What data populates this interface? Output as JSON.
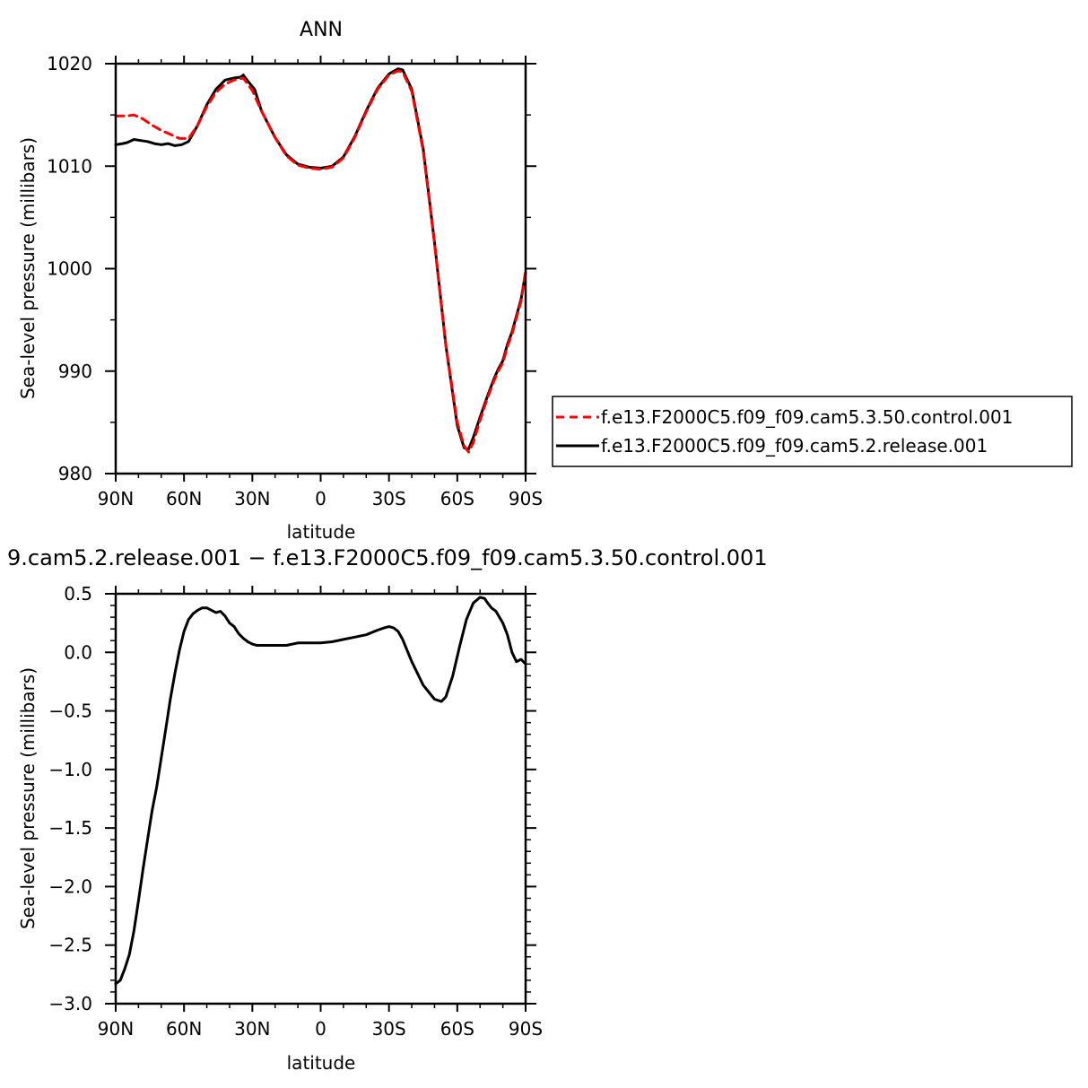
{
  "chart_data": [
    {
      "type": "line",
      "title": "ANN",
      "xlabel": "latitude",
      "ylabel": "Sea-level pressure (millibars)",
      "xlim": [
        -90,
        90
      ],
      "ylim": [
        980,
        1020
      ],
      "x_ticks": [
        -90,
        -60,
        -30,
        0,
        30,
        60,
        90
      ],
      "x_tick_labels": [
        "90N",
        "60N",
        "30N",
        "0",
        "30S",
        "60S",
        "90S"
      ],
      "y_ticks": [
        980,
        990,
        1000,
        1010,
        1020
      ],
      "y_tick_labels": [
        "980",
        "990",
        "1000",
        "1010",
        "1020"
      ],
      "legend": "right",
      "series": [
        {
          "name": "f.e13.F2000C5.f09_f09.cam5.3.50.control.001",
          "color": "#ff0000",
          "dash": "dashed",
          "x": [
            -90,
            -85,
            -82,
            -78,
            -74,
            -70,
            -66,
            -62,
            -58,
            -54,
            -50,
            -46,
            -42,
            -38,
            -34,
            -30,
            -26,
            -20,
            -15,
            -10,
            -5,
            0,
            5,
            10,
            15,
            20,
            25,
            30,
            34,
            36,
            40,
            45,
            50,
            55,
            60,
            63,
            65,
            67,
            70,
            73,
            76,
            78,
            80,
            82,
            84,
            86,
            88,
            90
          ],
          "y": [
            1014.9,
            1014.9,
            1015.0,
            1014.6,
            1014.0,
            1013.5,
            1013.1,
            1012.7,
            1012.7,
            1014.0,
            1015.8,
            1017.2,
            1018.0,
            1018.4,
            1018.6,
            1017.4,
            1015.4,
            1012.8,
            1011.0,
            1010.1,
            1009.8,
            1009.7,
            1009.9,
            1010.8,
            1012.8,
            1015.3,
            1017.5,
            1018.9,
            1019.3,
            1019.2,
            1017.3,
            1011.5,
            1002.5,
            992.5,
            985.0,
            982.7,
            982.1,
            983.0,
            985.2,
            987.2,
            989.0,
            990.0,
            990.8,
            992.4,
            993.6,
            995.2,
            996.8,
            999.8
          ]
        },
        {
          "name": "f.e13.F2000C5.f09_f09.cam5.2.release.001",
          "color": "#000000",
          "dash": "solid",
          "x": [
            -90,
            -87,
            -85,
            -82,
            -79,
            -76,
            -73,
            -70,
            -67,
            -64,
            -61,
            -58,
            -54,
            -50,
            -46,
            -42,
            -38,
            -35,
            -34,
            -32,
            -29,
            -26,
            -20,
            -15,
            -10,
            -5,
            0,
            5,
            10,
            15,
            20,
            25,
            30,
            34,
            36,
            40,
            45,
            50,
            55,
            60,
            63,
            65,
            67,
            70,
            73,
            76,
            78,
            80,
            82,
            84,
            86,
            88,
            90
          ],
          "y": [
            1012.1,
            1012.2,
            1012.3,
            1012.6,
            1012.5,
            1012.4,
            1012.2,
            1012.1,
            1012.2,
            1012.0,
            1012.1,
            1012.4,
            1014.0,
            1016.0,
            1017.5,
            1018.4,
            1018.6,
            1018.7,
            1018.9,
            1018.3,
            1017.5,
            1015.4,
            1012.8,
            1011.1,
            1010.2,
            1009.9,
            1009.8,
            1010.0,
            1010.9,
            1012.9,
            1015.4,
            1017.6,
            1019.0,
            1019.5,
            1019.4,
            1017.5,
            1011.7,
            1002.6,
            992.5,
            984.7,
            982.5,
            982.4,
            983.5,
            985.5,
            987.4,
            989.2,
            990.2,
            991.0,
            992.6,
            993.8,
            995.4,
            997.0,
            999.6
          ]
        }
      ]
    },
    {
      "type": "line",
      "title": "9.cam5.2.release.001 − f.e13.F2000C5.f09_f09.cam5.3.50.control.001",
      "xlabel": "latitude",
      "ylabel": "Sea-level pressure (millibars)",
      "xlim": [
        -90,
        90
      ],
      "ylim": [
        -3.0,
        0.5
      ],
      "x_ticks": [
        -90,
        -60,
        -30,
        0,
        30,
        60,
        90
      ],
      "x_tick_labels": [
        "90N",
        "60N",
        "30N",
        "0",
        "30S",
        "60S",
        "90S"
      ],
      "y_ticks": [
        -3.0,
        -2.5,
        -2.0,
        -1.5,
        -1.0,
        -0.5,
        0.0,
        0.5
      ],
      "y_tick_labels": [
        "−3.0",
        "−2.5",
        "−2.0",
        "−1.5",
        "−1.0",
        "−0.5",
        "0.0",
        "0.5"
      ],
      "series": [
        {
          "color": "#000000",
          "dash": "solid",
          "x": [
            -90,
            -88,
            -86,
            -84,
            -82,
            -80,
            -78,
            -76,
            -74,
            -72,
            -70,
            -68,
            -66,
            -64,
            -62,
            -60,
            -58,
            -56,
            -54,
            -52,
            -50,
            -48,
            -46,
            -44,
            -42,
            -40,
            -38,
            -36,
            -34,
            -32,
            -30,
            -28,
            -26,
            -24,
            -22,
            -20,
            -15,
            -10,
            -5,
            0,
            5,
            10,
            15,
            20,
            25,
            28,
            30,
            32,
            34,
            36,
            40,
            45,
            50,
            53,
            55,
            58,
            61,
            64,
            67,
            70,
            72,
            73,
            75,
            77,
            80,
            82,
            84,
            86,
            88,
            90
          ],
          "y": [
            -2.83,
            -2.8,
            -2.7,
            -2.58,
            -2.38,
            -2.12,
            -1.85,
            -1.6,
            -1.35,
            -1.15,
            -0.9,
            -0.65,
            -0.4,
            -0.18,
            0.02,
            0.18,
            0.28,
            0.33,
            0.36,
            0.38,
            0.38,
            0.36,
            0.34,
            0.35,
            0.31,
            0.25,
            0.22,
            0.16,
            0.12,
            0.09,
            0.07,
            0.06,
            0.06,
            0.06,
            0.06,
            0.06,
            0.06,
            0.08,
            0.08,
            0.08,
            0.09,
            0.11,
            0.13,
            0.15,
            0.19,
            0.21,
            0.22,
            0.21,
            0.18,
            0.11,
            -0.08,
            -0.28,
            -0.4,
            -0.42,
            -0.38,
            -0.2,
            0.05,
            0.28,
            0.42,
            0.47,
            0.46,
            0.43,
            0.38,
            0.35,
            0.25,
            0.15,
            0.0,
            -0.08,
            -0.06,
            -0.1
          ]
        }
      ]
    }
  ]
}
